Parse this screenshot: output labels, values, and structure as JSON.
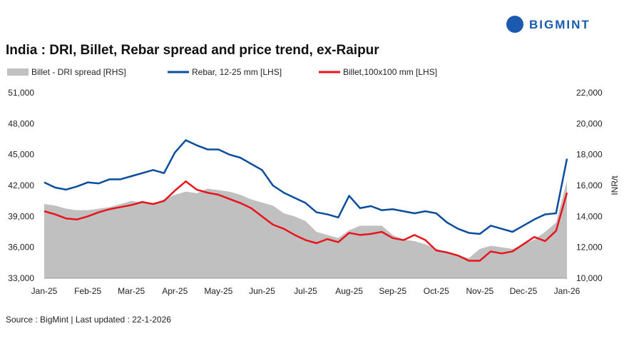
{
  "chart_data": {
    "type": "line",
    "title": "India : DRI, Billet, Rebar spread and price trend, ex-Raipur",
    "brand": "BIGMINT",
    "source": "Source : BigMint | Last updated : 22-1-2026",
    "y2_label": "INR/t",
    "categories": [
      "Jan-25",
      null,
      null,
      null,
      "Feb-25",
      null,
      null,
      null,
      "Mar-25",
      null,
      null,
      null,
      "Apr-25",
      null,
      null,
      null,
      "May-25",
      null,
      null,
      null,
      "Jun-25",
      null,
      null,
      null,
      "Jul-25",
      null,
      null,
      null,
      "Aug-25",
      null,
      null,
      null,
      "Sep-25",
      null,
      null,
      null,
      "Oct-25",
      null,
      null,
      null,
      "Nov-25",
      null,
      null,
      null,
      "Dec-25",
      null,
      null,
      null,
      "Jan-26"
    ],
    "series": [
      {
        "name": "Billet - DRI spread  [RHS]",
        "kind": "area",
        "axis": "y2",
        "color": "#c0c0c0",
        "values": [
          14800,
          14700,
          14500,
          14400,
          14400,
          14500,
          14600,
          14800,
          15000,
          14900,
          14800,
          15100,
          15400,
          15600,
          15500,
          15800,
          15700,
          15600,
          15400,
          15100,
          14900,
          14700,
          14200,
          14000,
          13700,
          13000,
          12800,
          12600,
          13100,
          13400,
          13400,
          13400,
          12800,
          12500,
          12400,
          12200,
          11900,
          11700,
          11500,
          11300,
          11900,
          12100,
          12000,
          11900,
          12200,
          12500,
          13000,
          13600,
          16300
        ]
      },
      {
        "name": "Rebar, 12-25 mm [LHS]",
        "kind": "line",
        "axis": "y",
        "color": "#0a4d9c",
        "values": [
          42300,
          41800,
          41600,
          41900,
          42300,
          42200,
          42600,
          42600,
          42900,
          43200,
          43500,
          43200,
          45200,
          46400,
          45900,
          45500,
          45500,
          45000,
          44700,
          44100,
          43500,
          42000,
          41300,
          40800,
          40300,
          39400,
          39200,
          38900,
          41000,
          39800,
          40000,
          39600,
          39700,
          39500,
          39300,
          39500,
          39300,
          38400,
          37800,
          37400,
          37300,
          38100,
          37800,
          37500,
          38100,
          38700,
          39200,
          39300,
          44600
        ]
      },
      {
        "name": "Billet,100x100 mm [LHS]",
        "kind": "line",
        "axis": "y",
        "color": "#e8141c",
        "values": [
          39500,
          39200,
          38800,
          38700,
          39000,
          39400,
          39700,
          39900,
          40100,
          40400,
          40200,
          40500,
          41500,
          42400,
          41600,
          41300,
          41100,
          40700,
          40300,
          39800,
          39000,
          38200,
          37800,
          37200,
          36700,
          36400,
          36800,
          36500,
          37400,
          37200,
          37300,
          37500,
          36900,
          36700,
          37200,
          36700,
          35700,
          35500,
          35200,
          34700,
          34700,
          35600,
          35400,
          35600,
          36300,
          37000,
          36600,
          37600,
          41300
        ]
      }
    ],
    "ylim": [
      33000,
      51000
    ],
    "yticks": [
      {
        "value": 33000,
        "label": "33,000"
      },
      {
        "value": 36000,
        "label": "36,000"
      },
      {
        "value": 39000,
        "label": "39,000"
      },
      {
        "value": 42000,
        "label": "42,000"
      },
      {
        "value": 45000,
        "label": "45,000"
      },
      {
        "value": 48000,
        "label": "48,000"
      },
      {
        "value": 51000,
        "label": "51,000"
      }
    ],
    "y2lim": [
      10000,
      22000
    ],
    "y2ticks": [
      {
        "value": 10000,
        "label": "10,000"
      },
      {
        "value": 12000,
        "label": "12,000"
      },
      {
        "value": 14000,
        "label": "14,000"
      },
      {
        "value": 16000,
        "label": "16,000"
      },
      {
        "value": 18000,
        "label": "18,000"
      },
      {
        "value": 20000,
        "label": "20,000"
      },
      {
        "value": 22000,
        "label": "22,000"
      }
    ],
    "grid": false
  }
}
